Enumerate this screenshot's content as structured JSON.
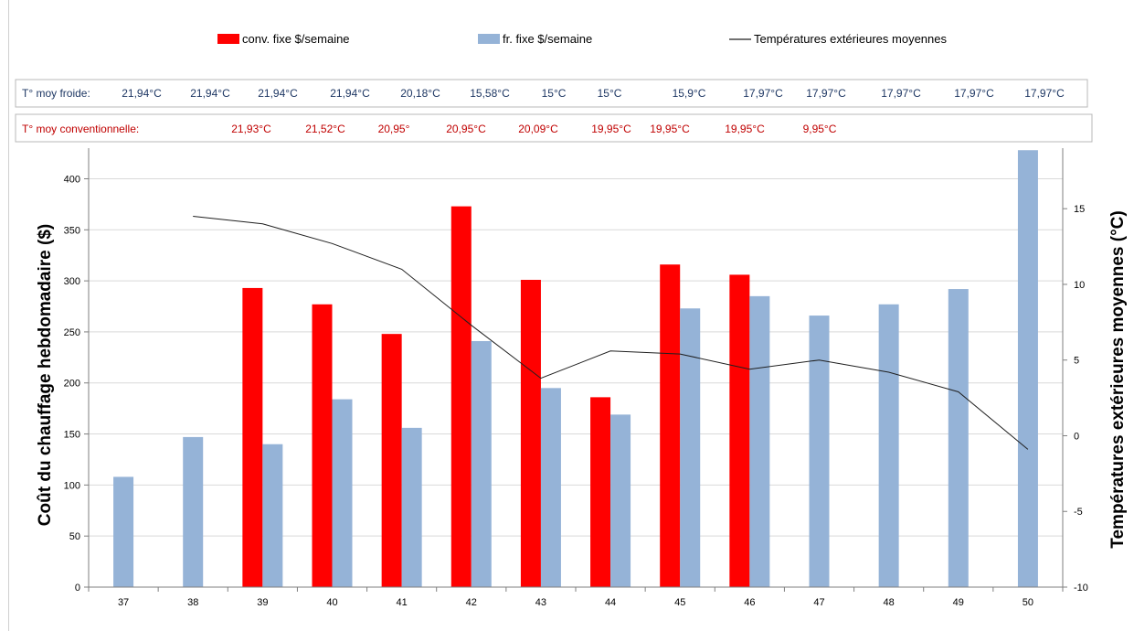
{
  "legend": {
    "conv": "conv. fixe $/semaine",
    "fr": "fr. fixe $/semaine",
    "line": "Températures extérieures moyennes"
  },
  "temp_rows": {
    "froide": {
      "label": "T° moy froide:",
      "values": [
        "21,94°C",
        "21,94°C",
        "21,94°C",
        "21,94°C",
        "20,18°C",
        "15,58°C",
        "15°C",
        "15°C",
        "15,9°C",
        "17,97°C",
        "17,97°C",
        "17,97°C",
        "17,97°C",
        "17,97°C"
      ]
    },
    "conventionnelle": {
      "label": "T° moy conventionnelle:",
      "values": [
        "21,93°C",
        "21,52°C",
        "20,95°",
        "20,95°C",
        "20,09°C",
        "19,95°C",
        "19,95°C",
        "19,95°C",
        "9,95°C"
      ]
    }
  },
  "colors": {
    "conv": "#ff0000",
    "fr": "#95b3d7",
    "line": "#1f1f1f",
    "froide_text": "#1f3864",
    "conv_text": "#c00000"
  },
  "chart_data": {
    "type": "bar",
    "categories": [
      "37",
      "38",
      "39",
      "40",
      "41",
      "42",
      "43",
      "44",
      "45",
      "46",
      "47",
      "48",
      "49",
      "50"
    ],
    "series": [
      {
        "name": "conv. fixe $/semaine",
        "type": "bar",
        "axis": "left",
        "values": [
          null,
          null,
          293,
          277,
          248,
          373,
          301,
          186,
          316,
          306,
          null,
          null,
          null,
          null
        ]
      },
      {
        "name": "fr. fixe $/semaine",
        "type": "bar",
        "axis": "left",
        "values": [
          108,
          147,
          140,
          184,
          156,
          241,
          195,
          169,
          273,
          285,
          266,
          277,
          292,
          428
        ]
      },
      {
        "name": "Températures extérieures moyennes",
        "type": "line",
        "axis": "right",
        "values": [
          null,
          14.5,
          14.0,
          12.7,
          11.0,
          7.3,
          3.8,
          5.6,
          5.4,
          4.4,
          5.0,
          4.2,
          2.9,
          -0.9
        ]
      }
    ],
    "ylabel": "Coût du chauffage hebdomadaire ($)",
    "y2label": "Températures extérieures moyennes (°C)",
    "ylim": [
      0,
      430
    ],
    "yticks": [
      0,
      50,
      100,
      150,
      200,
      250,
      300,
      350,
      400
    ],
    "y2lim": [
      -10,
      19
    ],
    "y2ticks": [
      -10,
      -5,
      0,
      5,
      10,
      15
    ],
    "legend_position": "top",
    "grid": true
  }
}
